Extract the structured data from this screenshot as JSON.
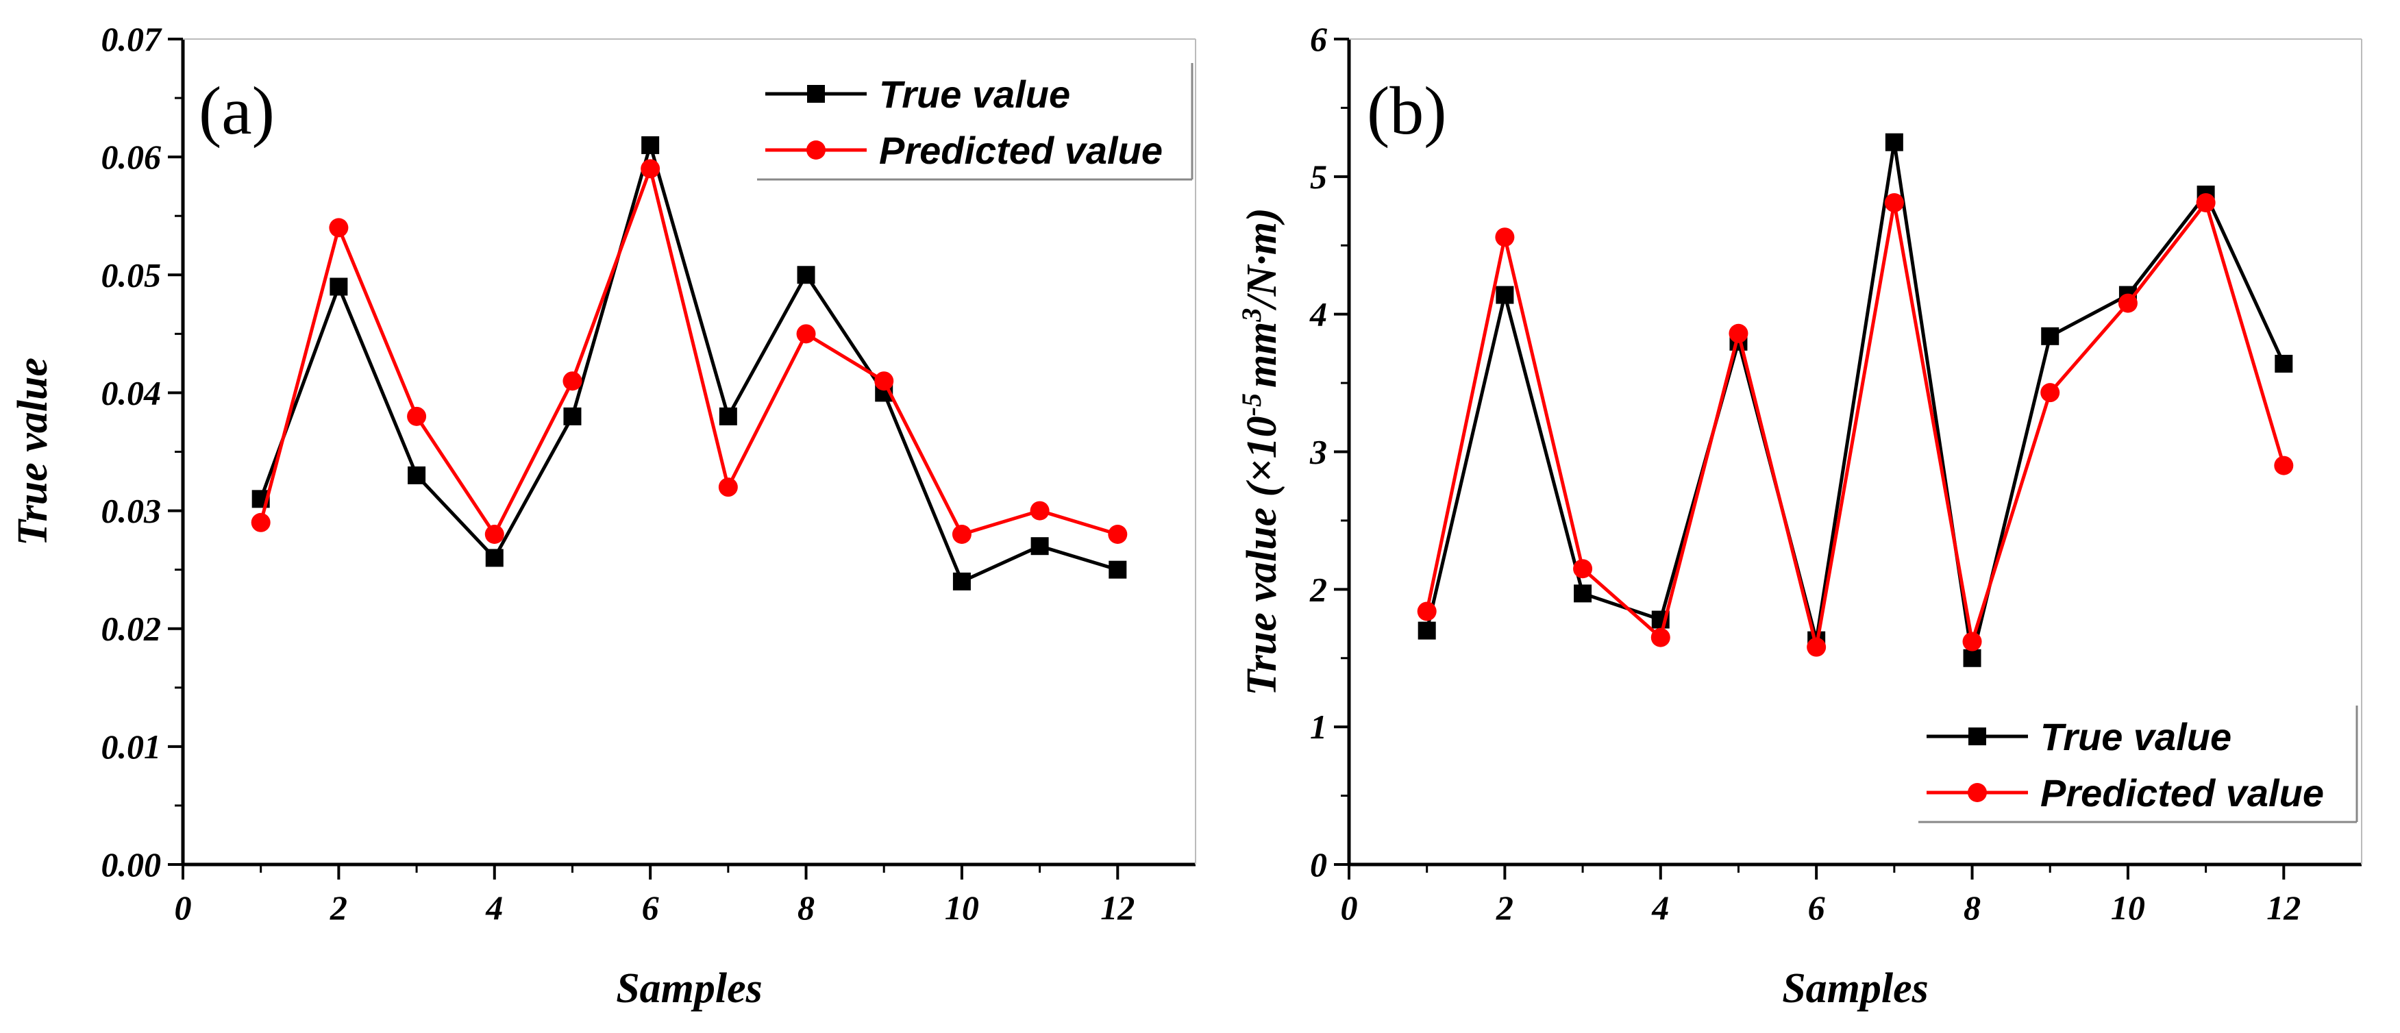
{
  "chart_data": [
    {
      "type": "line",
      "panel_label": "(a)",
      "xlabel": "Samples",
      "ylabel": "True value",
      "ylabel_sup": "",
      "ylabel_rest": "",
      "xlim": [
        0,
        13
      ],
      "ylim": [
        0,
        0.07
      ],
      "xticks": [
        0,
        2,
        4,
        6,
        8,
        10,
        12
      ],
      "xtick_labels": [
        "0",
        "2",
        "4",
        "6",
        "8",
        "10",
        "12"
      ],
      "yticks": [
        0,
        0.01,
        0.02,
        0.03,
        0.04,
        0.05,
        0.06,
        0.07
      ],
      "ytick_labels": [
        "0.00",
        "0.01",
        "0.02",
        "0.03",
        "0.04",
        "0.05",
        "0.06",
        "0.07"
      ],
      "legend_position": "top-right",
      "x": [
        1,
        2,
        3,
        4,
        5,
        6,
        7,
        8,
        9,
        10,
        11,
        12
      ],
      "series": [
        {
          "name": "True value",
          "color": "#000000",
          "marker": "square",
          "values": [
            0.031,
            0.049,
            0.033,
            0.026,
            0.038,
            0.061,
            0.038,
            0.05,
            0.04,
            0.024,
            0.027,
            0.025
          ]
        },
        {
          "name": "Predicted value",
          "color": "#ff0000",
          "marker": "circle",
          "values": [
            0.029,
            0.054,
            0.038,
            0.028,
            0.041,
            0.059,
            0.032,
            0.045,
            0.041,
            0.028,
            0.03,
            0.028
          ]
        }
      ]
    },
    {
      "type": "line",
      "panel_label": "(b)",
      "xlabel": "Samples",
      "ylabel": "True value (×10",
      "ylabel_sup": "-5",
      "ylabel_rest": "mm",
      "ylabel_sup2": "3",
      "ylabel_tail": "/N·m)",
      "xlim": [
        0,
        13
      ],
      "ylim": [
        0,
        6
      ],
      "xticks": [
        0,
        2,
        4,
        6,
        8,
        10,
        12
      ],
      "xtick_labels": [
        "0",
        "2",
        "4",
        "6",
        "8",
        "10",
        "12"
      ],
      "yticks": [
        0,
        1,
        2,
        3,
        4,
        5,
        6
      ],
      "ytick_labels": [
        "0",
        "1",
        "2",
        "3",
        "4",
        "5",
        "6"
      ],
      "legend_position": "bottom-right",
      "x": [
        1,
        2,
        3,
        4,
        5,
        6,
        7,
        8,
        9,
        10,
        11,
        12
      ],
      "series": [
        {
          "name": "True value",
          "color": "#000000",
          "marker": "square",
          "values": [
            1.7,
            4.14,
            1.97,
            1.78,
            3.8,
            1.63,
            5.25,
            1.5,
            3.84,
            4.14,
            4.87,
            3.64
          ]
        },
        {
          "name": "Predicted value",
          "color": "#ff0000",
          "marker": "circle",
          "values": [
            1.84,
            4.56,
            2.15,
            1.65,
            3.86,
            1.58,
            4.81,
            1.62,
            3.43,
            4.08,
            4.81,
            2.9
          ]
        }
      ]
    }
  ]
}
